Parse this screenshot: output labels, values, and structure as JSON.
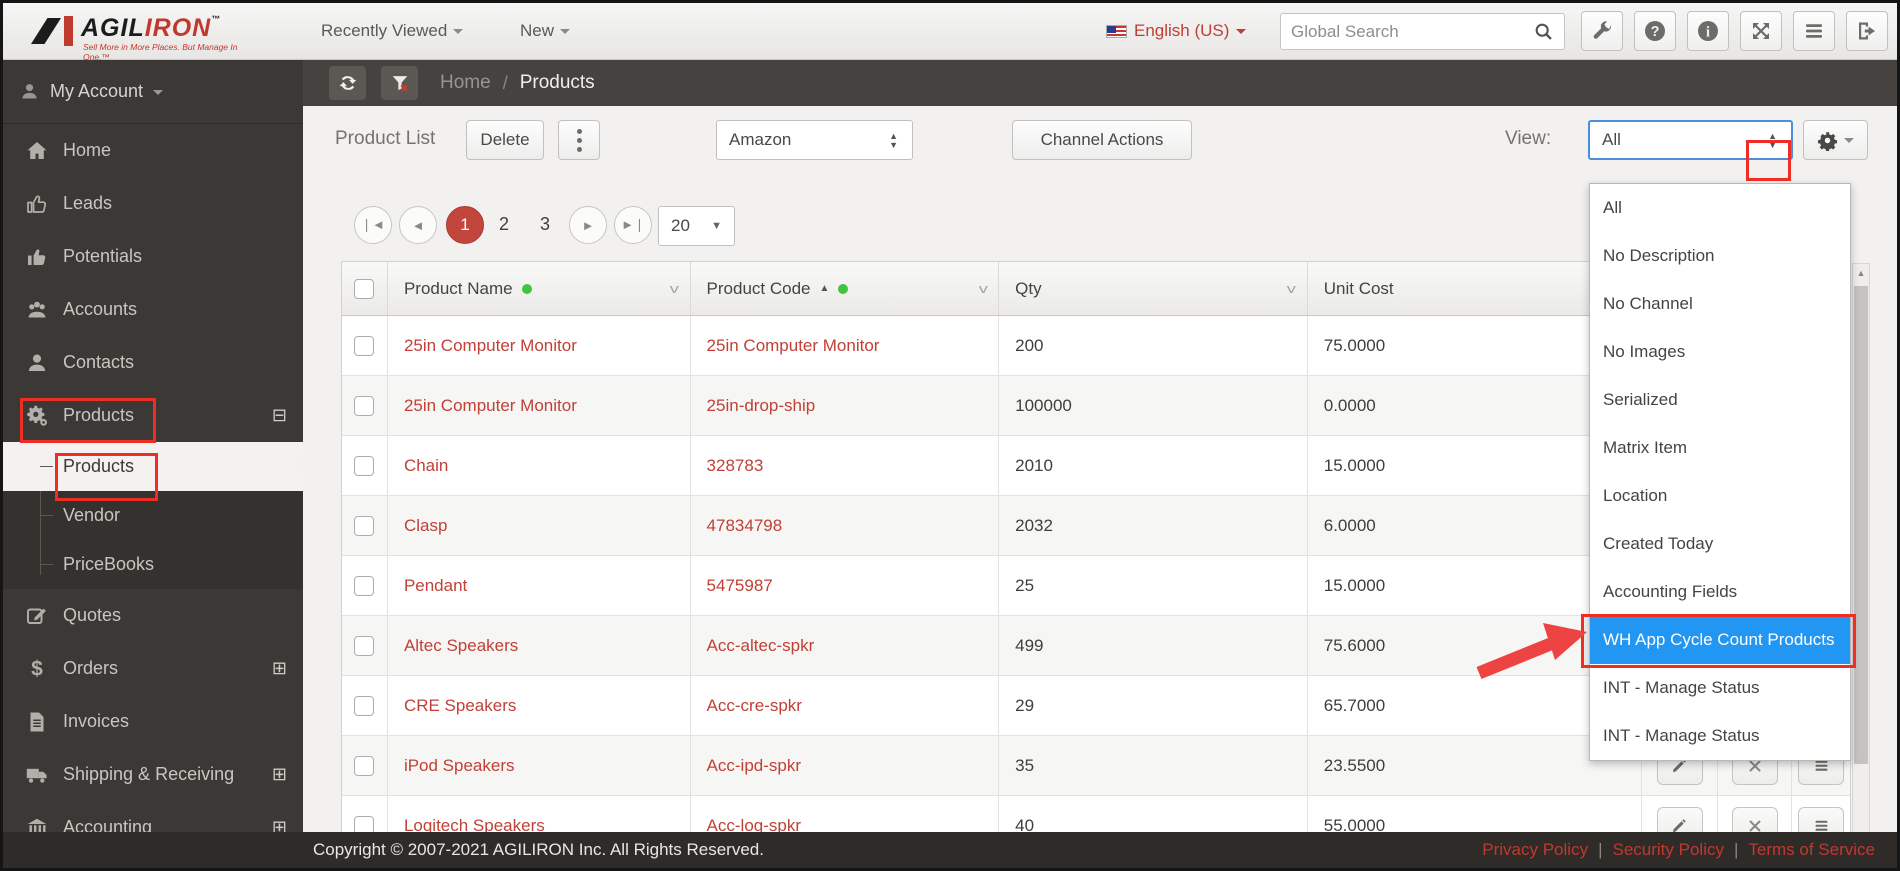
{
  "header": {
    "logo": {
      "text_black": "AGIL",
      "text_red": "IRON",
      "tm": "™",
      "tagline": "Sell More in More Places. But Manage In One.™"
    },
    "menus": [
      {
        "label": "Recently Viewed"
      },
      {
        "label": "New"
      }
    ],
    "language": "English (US)",
    "search_placeholder": "Global Search",
    "icon_buttons": [
      {
        "icon": "wrench-icon"
      },
      {
        "icon": "help-icon"
      },
      {
        "icon": "info-icon"
      },
      {
        "icon": "expand-icon"
      },
      {
        "icon": "menu-icon"
      },
      {
        "icon": "logout-icon"
      }
    ]
  },
  "sidebar": {
    "account_label": "My Account",
    "items": [
      {
        "label": "Home",
        "icon": "home"
      },
      {
        "label": "Leads",
        "icon": "thumbs-up"
      },
      {
        "label": "Potentials",
        "icon": "thumbs-up-solid"
      },
      {
        "label": "Accounts",
        "icon": "group"
      },
      {
        "label": "Contacts",
        "icon": "user"
      },
      {
        "label": "Products",
        "icon": "gears",
        "expand": "⊟",
        "annotated": true
      },
      {
        "label": "Products",
        "sub": true,
        "active": true,
        "annotated": true
      },
      {
        "label": "Vendor",
        "sub": true
      },
      {
        "label": "PriceBooks",
        "sub": true
      },
      {
        "label": "Quotes",
        "icon": "pencil-square"
      },
      {
        "label": "Orders",
        "icon": "dollar",
        "expand": "⊞"
      },
      {
        "label": "Invoices",
        "icon": "document"
      },
      {
        "label": "Shipping & Receiving",
        "icon": "truck",
        "expand": "⊞"
      },
      {
        "label": "Accounting",
        "icon": "bank",
        "expand": "⊞"
      }
    ]
  },
  "breadcrumb": {
    "home": "Home",
    "separator": "/",
    "current": "Products"
  },
  "toolbar": {
    "title": "Product List",
    "delete_label": "Delete",
    "channel_select_value": "Amazon",
    "channel_actions_label": "Channel Actions",
    "view_label": "View:",
    "view_value": "All"
  },
  "pagination": {
    "pages": [
      "1",
      "2",
      "3"
    ],
    "active_page": "1",
    "page_size": "20"
  },
  "table": {
    "columns": [
      {
        "label": "Product Name",
        "green_dot": true,
        "caret": true
      },
      {
        "label": "Product Code",
        "sort": "▲",
        "green_dot": true,
        "caret": true
      },
      {
        "label": "Qty",
        "caret": true
      },
      {
        "label": "Unit Cost"
      }
    ],
    "rows": [
      {
        "name": "25in Computer Monitor",
        "code": "25in Computer Monitor",
        "qty": "200",
        "cost": "75.0000"
      },
      {
        "name": "25in Computer Monitor",
        "code": "25in-drop-ship",
        "qty": "100000",
        "cost": "0.0000"
      },
      {
        "name": "Chain",
        "code": "328783",
        "qty": "2010",
        "cost": "15.0000"
      },
      {
        "name": "Clasp",
        "code": "47834798",
        "qty": "2032",
        "cost": "6.0000"
      },
      {
        "name": "Pendant",
        "code": "5475987",
        "qty": "25",
        "cost": "15.0000"
      },
      {
        "name": "Altec Speakers",
        "code": "Acc-altec-spkr",
        "qty": "499",
        "cost": "75.6000"
      },
      {
        "name": "CRE Speakers",
        "code": "Acc-cre-spkr",
        "qty": "29",
        "cost": "65.7000"
      },
      {
        "name": "iPod Speakers",
        "code": "Acc-ipd-spkr",
        "qty": "35",
        "cost": "23.5500"
      },
      {
        "name": "Logitech Speakers",
        "code": "Acc-log-spkr",
        "qty": "40",
        "cost": "55.0000"
      }
    ]
  },
  "view_dropdown": {
    "options": [
      "All",
      "No Description",
      "No Channel",
      "No Images",
      "Serialized",
      "Matrix Item",
      "Location",
      "Created Today",
      "Accounting Fields",
      "WH App Cycle Count Products",
      "INT - Manage Status",
      "INT - Manage Status"
    ],
    "highlighted_index": 9,
    "highlight_color": "#2196f3"
  },
  "footer": {
    "copyright": "Copyright © 2007-2021 AGILIRON Inc. All Rights Reserved.",
    "links": [
      "Privacy Policy",
      "Security Policy",
      "Terms of Service"
    ]
  },
  "colors": {
    "accent_red": "#c0392f",
    "link_red": "#c14037",
    "annotation_red": "#ee2d24",
    "highlight_blue": "#2196f3",
    "green_dot": "#3fc53f",
    "sidebar_bg": "#3b3835"
  }
}
